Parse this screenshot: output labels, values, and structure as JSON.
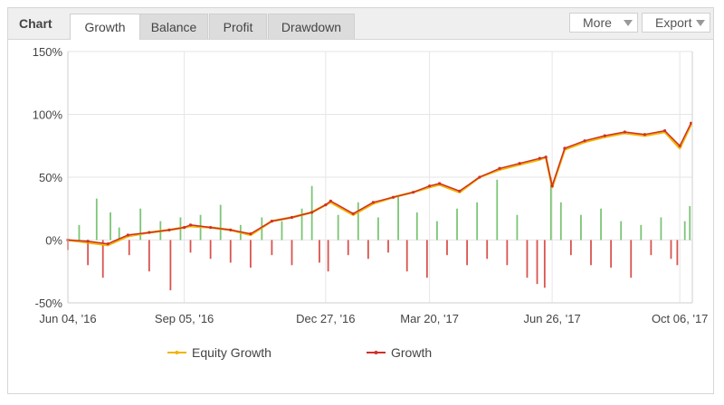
{
  "header": {
    "title": "Chart",
    "tabs": [
      {
        "label": "Growth",
        "active": true
      },
      {
        "label": "Balance",
        "active": false
      },
      {
        "label": "Profit",
        "active": false
      },
      {
        "label": "Drawdown",
        "active": false
      }
    ],
    "more_label": "More",
    "export_label": "Export"
  },
  "colors": {
    "equity_line": "#f0b400",
    "growth_line": "#d0302a",
    "positive_bar": "#7cc576",
    "negative_bar": "#d9534f",
    "grid": "#e6e6e6"
  },
  "chart_data": {
    "type": "line",
    "title": "",
    "xlabel": "",
    "ylabel": "",
    "ylim": [
      -50,
      150
    ],
    "yticks": [
      "-50%",
      "0%",
      "50%",
      "100%",
      "150%"
    ],
    "xticks": [
      "Jun 04, '16",
      "Sep 05, '16",
      "Dec 27, '16",
      "Mar 20, '17",
      "Jun 26, '17",
      "Oct 06, '17"
    ],
    "grid": true,
    "legend": "bottom",
    "x": [
      "2016-06-04",
      "2016-06-20",
      "2016-07-06",
      "2016-07-22",
      "2016-08-08",
      "2016-08-24",
      "2016-09-05",
      "2016-09-10",
      "2016-09-26",
      "2016-10-12",
      "2016-10-28",
      "2016-11-14",
      "2016-11-30",
      "2016-12-16",
      "2016-12-27",
      "2016-12-31",
      "2017-01-18",
      "2017-02-03",
      "2017-02-19",
      "2017-03-07",
      "2017-03-20",
      "2017-03-28",
      "2017-04-13",
      "2017-04-29",
      "2017-05-15",
      "2017-05-31",
      "2017-06-16",
      "2017-06-21",
      "2017-06-26",
      "2017-07-06",
      "2017-07-22",
      "2017-08-07",
      "2017-08-23",
      "2017-09-08",
      "2017-09-24",
      "2017-10-06",
      "2017-10-15"
    ],
    "series": [
      {
        "name": "Equity Growth",
        "values": [
          0,
          -2,
          -4,
          3,
          6,
          8,
          10,
          11,
          10,
          8,
          4,
          15,
          18,
          22,
          28,
          30,
          20,
          29,
          34,
          38,
          42,
          44,
          38,
          50,
          56,
          60,
          64,
          66,
          42,
          72,
          78,
          82,
          85,
          83,
          86,
          73,
          92
        ]
      },
      {
        "name": "Growth",
        "values": [
          0,
          -1,
          -3,
          4,
          6,
          8,
          10,
          12,
          10,
          8,
          5,
          15,
          18,
          22,
          28,
          31,
          21,
          30,
          34,
          38,
          43,
          45,
          39,
          50,
          57,
          61,
          65,
          66,
          43,
          73,
          79,
          83,
          86,
          84,
          87,
          75,
          93
        ]
      }
    ],
    "bars": [
      {
        "x": "2016-06-04",
        "value": -8
      },
      {
        "x": "2016-06-13",
        "value": 12
      },
      {
        "x": "2016-06-20",
        "value": -20
      },
      {
        "x": "2016-06-27",
        "value": 33
      },
      {
        "x": "2016-07-02",
        "value": -30
      },
      {
        "x": "2016-07-08",
        "value": 22
      },
      {
        "x": "2016-07-15",
        "value": 10
      },
      {
        "x": "2016-07-23",
        "value": -12
      },
      {
        "x": "2016-08-01",
        "value": 25
      },
      {
        "x": "2016-08-08",
        "value": -25
      },
      {
        "x": "2016-08-17",
        "value": 15
      },
      {
        "x": "2016-08-25",
        "value": -40
      },
      {
        "x": "2016-09-02",
        "value": 18
      },
      {
        "x": "2016-09-10",
        "value": -10
      },
      {
        "x": "2016-09-18",
        "value": 20
      },
      {
        "x": "2016-09-26",
        "value": -15
      },
      {
        "x": "2016-10-04",
        "value": 28
      },
      {
        "x": "2016-10-12",
        "value": -18
      },
      {
        "x": "2016-10-20",
        "value": 12
      },
      {
        "x": "2016-10-28",
        "value": -22
      },
      {
        "x": "2016-11-06",
        "value": 18
      },
      {
        "x": "2016-11-14",
        "value": -12
      },
      {
        "x": "2016-11-22",
        "value": 15
      },
      {
        "x": "2016-11-30",
        "value": -20
      },
      {
        "x": "2016-12-08",
        "value": 25
      },
      {
        "x": "2016-12-16",
        "value": 43
      },
      {
        "x": "2016-12-22",
        "value": -18
      },
      {
        "x": "2016-12-29",
        "value": -25
      },
      {
        "x": "2017-01-06",
        "value": 20
      },
      {
        "x": "2017-01-14",
        "value": -12
      },
      {
        "x": "2017-01-22",
        "value": 30
      },
      {
        "x": "2017-01-30",
        "value": -15
      },
      {
        "x": "2017-02-07",
        "value": 18
      },
      {
        "x": "2017-02-15",
        "value": -10
      },
      {
        "x": "2017-02-23",
        "value": 35
      },
      {
        "x": "2017-03-02",
        "value": -25
      },
      {
        "x": "2017-03-10",
        "value": 22
      },
      {
        "x": "2017-03-18",
        "value": -30
      },
      {
        "x": "2017-03-26",
        "value": 15
      },
      {
        "x": "2017-04-03",
        "value": -12
      },
      {
        "x": "2017-04-11",
        "value": 25
      },
      {
        "x": "2017-04-19",
        "value": -20
      },
      {
        "x": "2017-04-27",
        "value": 30
      },
      {
        "x": "2017-05-05",
        "value": -15
      },
      {
        "x": "2017-05-13",
        "value": 48
      },
      {
        "x": "2017-05-21",
        "value": -20
      },
      {
        "x": "2017-05-29",
        "value": 20
      },
      {
        "x": "2017-06-06",
        "value": -30
      },
      {
        "x": "2017-06-14",
        "value": -35
      },
      {
        "x": "2017-06-20",
        "value": -38
      },
      {
        "x": "2017-06-25",
        "value": 50
      },
      {
        "x": "2017-07-03",
        "value": 30
      },
      {
        "x": "2017-07-11",
        "value": -12
      },
      {
        "x": "2017-07-19",
        "value": 20
      },
      {
        "x": "2017-07-27",
        "value": -20
      },
      {
        "x": "2017-08-04",
        "value": 25
      },
      {
        "x": "2017-08-12",
        "value": -22
      },
      {
        "x": "2017-08-20",
        "value": 15
      },
      {
        "x": "2017-08-28",
        "value": -30
      },
      {
        "x": "2017-09-05",
        "value": 12
      },
      {
        "x": "2017-09-13",
        "value": -12
      },
      {
        "x": "2017-09-21",
        "value": 18
      },
      {
        "x": "2017-09-29",
        "value": -15
      },
      {
        "x": "2017-10-04",
        "value": -20
      },
      {
        "x": "2017-10-10",
        "value": 15
      },
      {
        "x": "2017-10-14",
        "value": 27
      }
    ]
  }
}
